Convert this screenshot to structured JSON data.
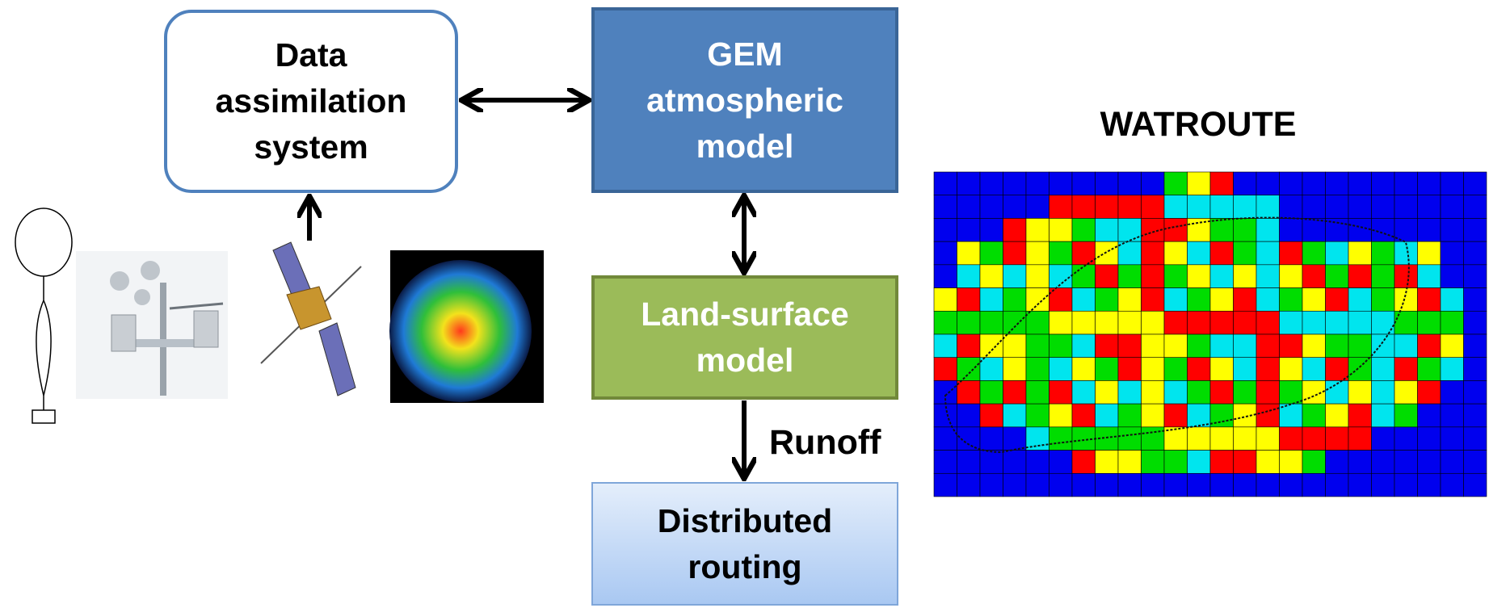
{
  "nodes": [
    {
      "label_lines": [
        "Data",
        "assimilation",
        "system"
      ]
    },
    {
      "label_lines": [
        "GEM",
        "atmospheric",
        "model"
      ]
    },
    {
      "label_lines": [
        "Land-surface",
        "model"
      ]
    },
    {
      "label_lines": [
        "Distributed",
        "routing"
      ]
    }
  ],
  "edge_label": "Runoff",
  "map_title": "WATROUTE"
}
